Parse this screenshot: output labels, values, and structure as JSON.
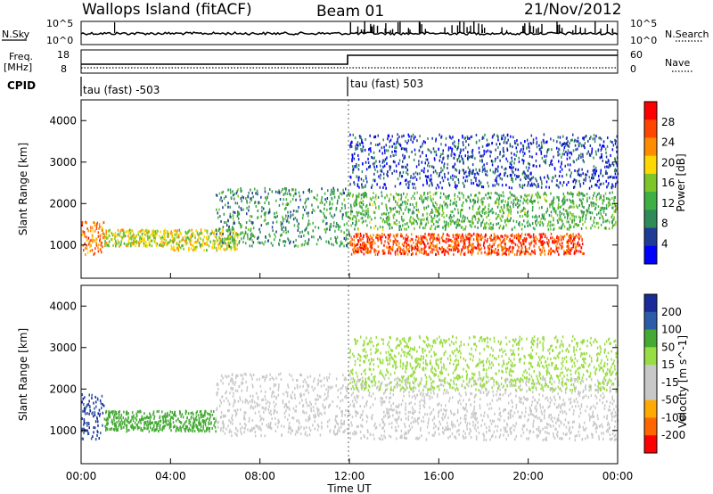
{
  "header": {
    "station": "Wallops Island (fitACF)",
    "beam": "Beam 01",
    "date": "21/Nov/2012"
  },
  "top_panel": {
    "left_label_1": "N.Sky",
    "left_tick_hi": "10^5",
    "left_tick_lo": "10^0",
    "right_label_1": "N.Search",
    "right_tick_hi": "10^5",
    "right_tick_lo": "10^0",
    "left_label_2a": "Freq.",
    "left_label_2b": "[MHz]",
    "freq_tick_hi": "18",
    "freq_tick_lo": "8",
    "right_label_2": "Nave",
    "nave_tick_hi": "60",
    "nave_tick_lo": "0",
    "cpid_label": "CPID",
    "cpid_1": "tau (fast) -503",
    "cpid_2": "tau (fast) 503"
  },
  "colors": {
    "power": [
      "#0000ff",
      "#1e3c96",
      "#2e8b57",
      "#3cb043",
      "#7cc62a",
      "#ffd700",
      "#ff8c00",
      "#ff4500",
      "#ff0000"
    ],
    "velocity": [
      "#ff0000",
      "#ff6600",
      "#ffaa00",
      "#c8c8c8",
      "#c8c8c8",
      "#99dd44",
      "#44aa33",
      "#2a5ca8",
      "#1a2a99"
    ]
  },
  "chart_data": [
    {
      "type": "heatmap",
      "panel": "power",
      "ylabel": "Slant Range [km]",
      "yticks": [
        "1000",
        "2000",
        "3000",
        "4000"
      ],
      "ylim": [
        200,
        4500
      ],
      "xlim_hours": [
        0,
        24
      ],
      "colorbar_label": "Power [dB]",
      "colorbar_ticks": [
        "4",
        "8",
        "12",
        "16",
        "20",
        "24",
        "28"
      ],
      "colorbar_range": [
        0,
        32
      ],
      "echo_bands": [
        {
          "t": [
            0,
            1
          ],
          "r": [
            800,
            1600
          ],
          "value": 24
        },
        {
          "t": [
            1,
            4
          ],
          "r": [
            1000,
            1400
          ],
          "value": 18
        },
        {
          "t": [
            4,
            7
          ],
          "r": [
            900,
            1400
          ],
          "value": 18
        },
        {
          "t": [
            6,
            12
          ],
          "r": [
            1000,
            2400
          ],
          "value": 10
        },
        {
          "t": [
            12,
            22.5
          ],
          "r": [
            800,
            1300
          ],
          "value": 27
        },
        {
          "t": [
            12,
            24
          ],
          "r": [
            1400,
            2300
          ],
          "value": 13
        },
        {
          "t": [
            12,
            24
          ],
          "r": [
            2400,
            3700
          ],
          "value": 5
        }
      ]
    },
    {
      "type": "heatmap",
      "panel": "velocity",
      "ylabel": "Slant Range [km]",
      "yticks": [
        "1000",
        "2000",
        "3000",
        "4000"
      ],
      "ylim": [
        200,
        4500
      ],
      "xlim_hours": [
        0,
        24
      ],
      "xlabel": "Time UT",
      "xticks": [
        "00:00",
        "04:00",
        "08:00",
        "12:00",
        "16:00",
        "20:00",
        "00:00"
      ],
      "colorbar_label": "Velocity [m s^-1]",
      "colorbar_ticks": [
        "200",
        "100",
        "50",
        "15",
        "-15",
        "-50",
        "-100",
        "-200"
      ],
      "echo_bands": [
        {
          "t": [
            0,
            1
          ],
          "r": [
            800,
            1900
          ],
          "value": 60
        },
        {
          "t": [
            1,
            6
          ],
          "r": [
            1000,
            1500
          ],
          "value": 30
        },
        {
          "t": [
            6,
            12
          ],
          "r": [
            900,
            2400
          ],
          "value": 0
        },
        {
          "t": [
            12,
            24
          ],
          "r": [
            800,
            2300
          ],
          "value": 0
        },
        {
          "t": [
            12,
            24
          ],
          "r": [
            2000,
            3300
          ],
          "value": 20
        }
      ]
    }
  ]
}
